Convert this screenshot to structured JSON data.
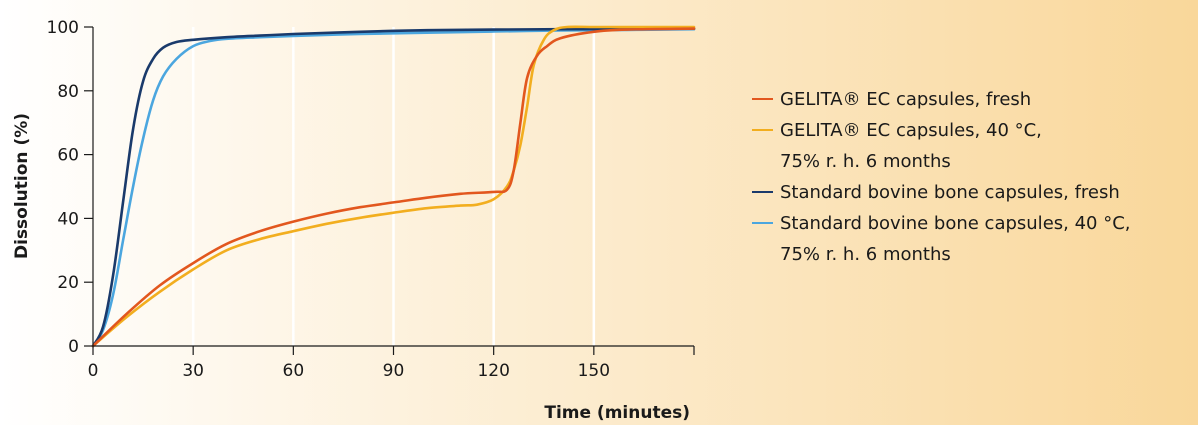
{
  "chart_data": {
    "type": "line",
    "title": "",
    "xlabel": "Time (minutes)",
    "ylabel": "Dissolution (%)",
    "xlim": [
      0,
      180
    ],
    "ylim": [
      0,
      100
    ],
    "x_ticks": [
      "0",
      "30",
      "60",
      "90",
      "120",
      "150"
    ],
    "y_ticks": [
      "0",
      "20",
      "40",
      "60",
      "80",
      "100"
    ],
    "grid": "vertical gridlines",
    "legend_position": "right",
    "background": [
      "#ffffff",
      "#f9d79a"
    ],
    "series": [
      {
        "name": "GELITA® EC capsules, fresh",
        "color": "#e2571e",
        "x": [
          0,
          10,
          20,
          30,
          40,
          50,
          60,
          70,
          80,
          90,
          100,
          110,
          120,
          124,
          126,
          128,
          130,
          133,
          136,
          140,
          150,
          160,
          180
        ],
        "y": [
          0,
          10,
          19,
          26,
          32,
          36,
          39,
          41.5,
          43.5,
          45,
          46.5,
          47.7,
          48.3,
          49,
          55,
          70,
          84,
          91,
          94,
          96.5,
          98.5,
          99.2,
          99.5
        ]
      },
      {
        "name": "GELITA® EC capsules, 40 °C,\n75% r. h. 6 months",
        "color": "#f2ae1f",
        "x": [
          0,
          10,
          20,
          30,
          40,
          50,
          60,
          70,
          80,
          90,
          100,
          110,
          115,
          120,
          124,
          126,
          128,
          130,
          132,
          135,
          138,
          142,
          150,
          160,
          180
        ],
        "y": [
          0,
          9,
          17,
          24,
          30,
          33.5,
          36,
          38.3,
          40.2,
          41.8,
          43.2,
          44,
          44.3,
          46,
          50,
          55,
          63,
          75,
          88,
          96,
          99,
          100,
          100,
          100,
          100
        ]
      },
      {
        "name": "Standard bovine bone capsules, fresh",
        "color": "#1a3a6b",
        "x": [
          0,
          3,
          6,
          9,
          12,
          15,
          18,
          21,
          25,
          30,
          40,
          50,
          60,
          80,
          100,
          120,
          140,
          160,
          180
        ],
        "y": [
          0,
          6,
          22,
          45,
          68,
          83,
          90,
          93.5,
          95.3,
          96,
          96.8,
          97.3,
          97.8,
          98.5,
          99,
          99.2,
          99.3,
          99.4,
          99.5
        ]
      },
      {
        "name": "Standard bovine bone capsules, 40 °C,\n75% r. h. 6 months",
        "color": "#4ba6df",
        "x": [
          0,
          3,
          6,
          9,
          12,
          15,
          18,
          21,
          25,
          30,
          35,
          40,
          50,
          60,
          80,
          100,
          120,
          140,
          160,
          180
        ],
        "y": [
          0,
          5,
          16,
          33,
          50,
          65,
          77,
          84.5,
          90,
          94,
          95.6,
          96.3,
          96.8,
          97.2,
          97.8,
          98.2,
          98.6,
          98.9,
          99.1,
          99.3
        ]
      }
    ]
  }
}
